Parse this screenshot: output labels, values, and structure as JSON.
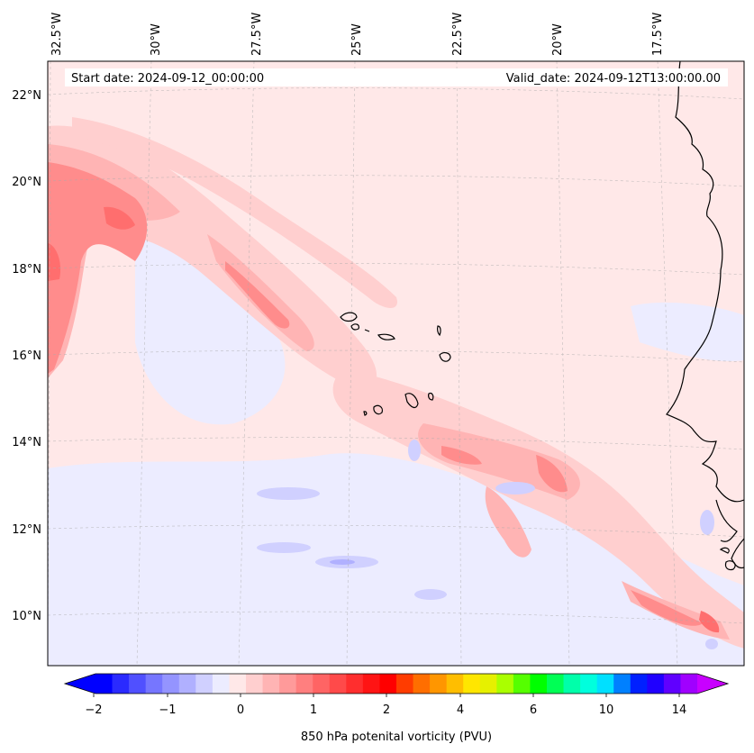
{
  "map": {
    "start_date": "Start date: 2024-09-12_00:00:00",
    "valid_date": "Valid_date: 2024-09-12T13:00:00.00",
    "lon_labels": [
      "32.5°W",
      "30°W",
      "27.5°W",
      "25°W",
      "22.5°W",
      "20°W",
      "17.5°W"
    ],
    "lat_labels": [
      "22°N",
      "20°N",
      "18°N",
      "16°N",
      "14°N",
      "12°N",
      "10°N"
    ]
  },
  "colorbar": {
    "label": "850 hPa potenital vorticity (PVU)",
    "tick_labels": [
      "−2",
      "−1",
      "0",
      "1",
      "2",
      "4",
      "6",
      "10",
      "14"
    ],
    "colors": [
      "#0000ff",
      "#2a2aff",
      "#5050ff",
      "#7676ff",
      "#9494ff",
      "#b0b0ff",
      "#d0d0ff",
      "#ececff",
      "#ffe8e8",
      "#ffcfcf",
      "#ffb4b4",
      "#ff9a9a",
      "#ff7f7f",
      "#ff6464",
      "#ff4a4a",
      "#ff2e2e",
      "#ff1414",
      "#ff0000",
      "#ff3c00",
      "#ff6e00",
      "#ff9600",
      "#ffbe00",
      "#ffe600",
      "#e6f000",
      "#aaff00",
      "#55ff00",
      "#00ff00",
      "#00ff55",
      "#00ffaa",
      "#00ffdd",
      "#00e0ff",
      "#0080ff",
      "#0020ff",
      "#2000ff",
      "#6000ff",
      "#a000ff"
    ],
    "under_color": "#0000ff",
    "over_color": "#c800ff"
  },
  "field_colors": {
    "background": "#ffe8e8",
    "light_pos": "#ffcfcf",
    "mid_pos": "#ffb4b4",
    "strong_pos": "#ff8c8c",
    "peak_pos": "#ff6e6e",
    "light_neg": "#ececff",
    "mid_neg": "#d0d0ff",
    "strong_neg": "#b0b0ff"
  }
}
